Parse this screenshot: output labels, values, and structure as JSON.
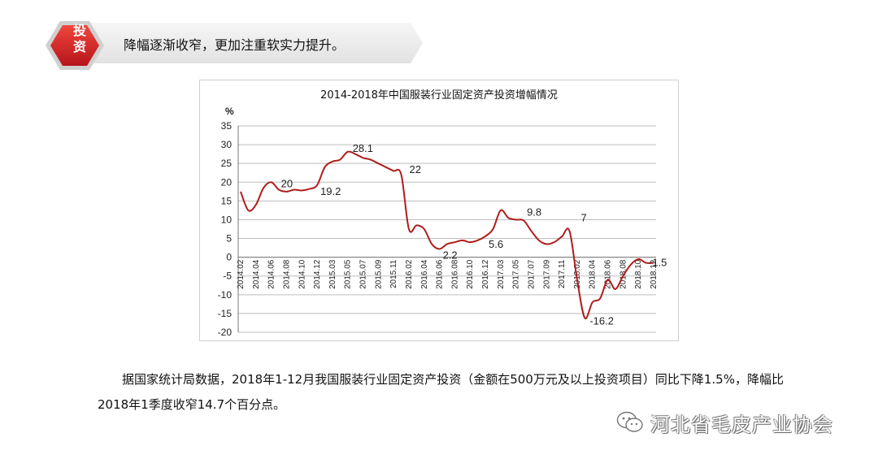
{
  "header": {
    "badge_label_1": "投",
    "badge_label_2": "资",
    "title": "降幅逐渐收窄，更加注重软实力提升。"
  },
  "chart_data": {
    "type": "line",
    "title": "2014-2018年中国服装行业固定资产投资增幅情况",
    "ylabel": "%",
    "xlabel": "",
    "ylim": [
      -20,
      35
    ],
    "yticks": [
      35,
      30,
      25,
      20,
      15,
      10,
      5,
      0,
      -5,
      -10,
      -15,
      -20
    ],
    "grid": "horizontal",
    "x": [
      "2014.02",
      "2014.03",
      "2014.04",
      "2014.05",
      "2014.06",
      "2014.07",
      "2014.08",
      "2014.09",
      "2014.10",
      "2014.11",
      "2014.12",
      "2015.02",
      "2015.03",
      "2015.04",
      "2015.05",
      "2015.06",
      "2015.07",
      "2015.08",
      "2015.09",
      "2015.10",
      "2015.11",
      "2015.12",
      "2016.02",
      "2016.03",
      "2016.04",
      "2016.05",
      "2016.06",
      "2016.07",
      "2016.08",
      "2016.09",
      "2016.10",
      "2016.11",
      "2016.12",
      "2017.02",
      "2017.03",
      "2017.04",
      "2017.05",
      "2017.06",
      "2017.07",
      "2017.08",
      "2017.09",
      "2017.10",
      "2017.11",
      "2017.12",
      "2018.02",
      "2018.03",
      "2018.04",
      "2018.05",
      "2018.06",
      "2018.07",
      "2018.08",
      "2018.09",
      "2018.10",
      "2018.11",
      "2018.12"
    ],
    "values": [
      17.5,
      12.5,
      14.0,
      18.5,
      20.0,
      18.0,
      17.5,
      18.0,
      17.8,
      18.2,
      19.2,
      24.0,
      25.5,
      26.0,
      28.1,
      27.5,
      26.5,
      26.0,
      25.0,
      24.0,
      23.0,
      22.0,
      7.5,
      8.5,
      7.5,
      3.5,
      2.2,
      3.5,
      4.0,
      4.5,
      4.0,
      4.5,
      5.6,
      7.5,
      12.5,
      10.5,
      10.0,
      9.8,
      7.0,
      4.5,
      3.5,
      4.0,
      5.5,
      7.0,
      -6.0,
      -16.2,
      -12.0,
      -11.0,
      -6.0,
      -8.5,
      -5.0,
      -2.0,
      -0.5,
      -1.5,
      -1.5
    ],
    "tick_labels": [
      "2014.02",
      "2014.04",
      "2014.06",
      "2014.08",
      "2014.10",
      "2014.12",
      "2015.03",
      "2015.05",
      "2015.07",
      "2015.09",
      "2015.11",
      "2016.02",
      "2016.04",
      "2016.06",
      "2016.08",
      "2016.10",
      "2016.12",
      "2017.03",
      "2017.05",
      "2017.07",
      "2017.09",
      "2017.11",
      "2018.02",
      "2018.04",
      "2018.06",
      "2018.08",
      "2018.10",
      "2018.12"
    ],
    "annotations": [
      {
        "x": "2014.06",
        "label": "20"
      },
      {
        "x": "2014.12",
        "label": "19.2"
      },
      {
        "x": "2015.05",
        "label": "28.1"
      },
      {
        "x": "2015.12",
        "label": "22"
      },
      {
        "x": "2016.06",
        "label": "2.2"
      },
      {
        "x": "2016.12",
        "label": "5.6"
      },
      {
        "x": "2017.06",
        "label": "9.8"
      },
      {
        "x": "2017.12",
        "label": "7"
      },
      {
        "x": "2018.03",
        "label": "-16.2"
      },
      {
        "x": "2018.12",
        "label": "-1.5"
      }
    ],
    "line_color": "#b01c1c"
  },
  "body": {
    "paragraph": "据国家统计局数据，2018年1-12月我国服装行业固定资产投资（金额在500万元及以上投资项目）同比下降1.5%，降幅比2018年1季度收窄14.7个百分点。"
  },
  "watermark": {
    "text": "河北省毛皮产业协会",
    "icon": "wechat-icon"
  }
}
